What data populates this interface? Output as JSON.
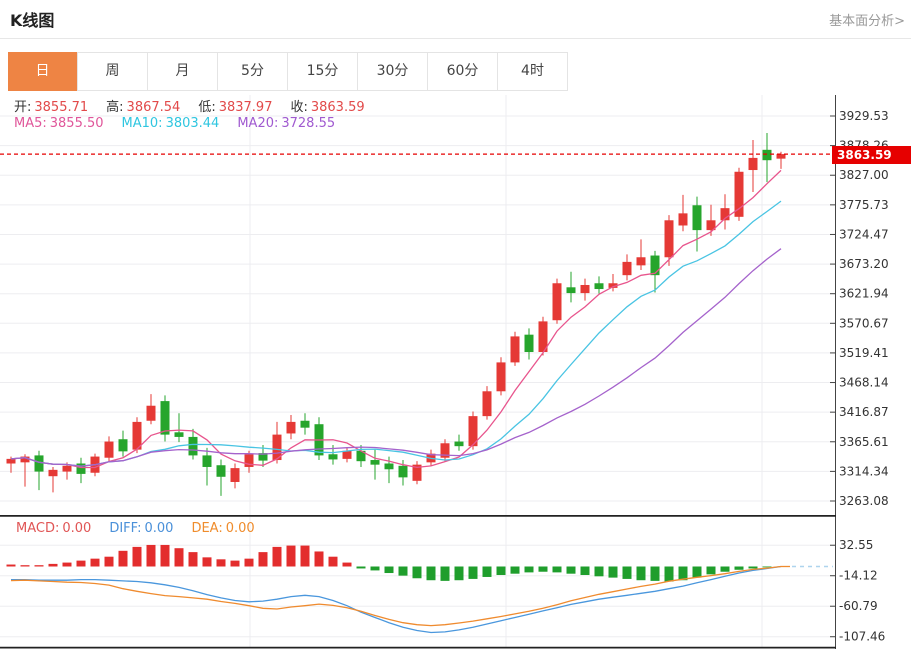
{
  "header": {
    "title": "K线图",
    "link": "基本面分析>"
  },
  "tabs": {
    "items": [
      "日",
      "周",
      "月",
      "5分",
      "15分",
      "30分",
      "60分",
      "4时"
    ],
    "active_index": 0
  },
  "legend": {
    "ohlc": [
      {
        "label": "开:",
        "value": "3855.71"
      },
      {
        "label": "高:",
        "value": "3867.54"
      },
      {
        "label": "低:",
        "value": "3837.97"
      },
      {
        "label": "收:",
        "value": "3863.59"
      }
    ],
    "ma": [
      {
        "label": "MA5:",
        "value": "3855.50",
        "color": "#e0569a"
      },
      {
        "label": "MA10:",
        "value": "3803.44",
        "color": "#2fc6e0"
      },
      {
        "label": "MA20:",
        "value": "3728.55",
        "color": "#a05ad0"
      }
    ],
    "macd": [
      {
        "label": "MACD:",
        "value": "0.00",
        "color": "#e05555"
      },
      {
        "label": "DIFF:",
        "value": "0.00",
        "color": "#4a90d9"
      },
      {
        "label": "DEA:",
        "value": "0.00",
        "color": "#ef8c2c"
      }
    ]
  },
  "price_marker": {
    "value": "3863.59",
    "bg": "#e60000"
  },
  "colors": {
    "up": "#e53935",
    "down": "#26a52c",
    "ma5": "#e8558d",
    "ma10": "#49c4e3",
    "ma20": "#a563cc",
    "diff_line": "#4a97dd",
    "dea_line": "#ef8b2f",
    "label_text": "#333333",
    "value_red": "#e24a4a",
    "grid": "#ededf0",
    "axis": "#444444",
    "border": "#222222",
    "dashed_price": "#e60000",
    "zero_dash": "#aed4ee",
    "macd_up": "#e32d2d",
    "macd_down": "#1f9e2c",
    "tab_active_bg": "#ee8444"
  },
  "chart_data": {
    "type": "candlestick",
    "x_count": 56,
    "price_panel": {
      "title": "K线图",
      "y_ticks": [
        3929.53,
        3878.26,
        3827.0,
        3775.73,
        3724.47,
        3673.2,
        3621.94,
        3570.67,
        3519.41,
        3468.14,
        3416.87,
        3365.61,
        3314.34,
        3263.08
      ],
      "ylim": [
        3263.08,
        3929.53
      ],
      "current_price": 3863.59,
      "last_candle": {
        "open": 3855.71,
        "high": 3867.54,
        "low": 3837.97,
        "close": 3863.59
      },
      "ma_periods": [
        5,
        10,
        20
      ],
      "ma_last_values": {
        "ma5": 3855.5,
        "ma10": 3803.44,
        "ma20": 3728.55
      },
      "candles_ohlc": [
        [
          3328,
          3340,
          3312,
          3336
        ],
        [
          3330,
          3344,
          3288,
          3340
        ],
        [
          3342,
          3350,
          3282,
          3314
        ],
        [
          3306,
          3322,
          3278,
          3317
        ],
        [
          3314,
          3330,
          3300,
          3324
        ],
        [
          3328,
          3338,
          3294,
          3310
        ],
        [
          3312,
          3345,
          3306,
          3340
        ],
        [
          3338,
          3375,
          3330,
          3366
        ],
        [
          3370,
          3385,
          3340,
          3349
        ],
        [
          3352,
          3408,
          3346,
          3400
        ],
        [
          3402,
          3448,
          3396,
          3428
        ],
        [
          3436,
          3446,
          3366,
          3378
        ],
        [
          3382,
          3415,
          3365,
          3374
        ],
        [
          3374,
          3388,
          3335,
          3342
        ],
        [
          3342,
          3355,
          3290,
          3322
        ],
        [
          3325,
          3335,
          3272,
          3305
        ],
        [
          3296,
          3328,
          3285,
          3320
        ],
        [
          3322,
          3350,
          3312,
          3344
        ],
        [
          3346,
          3360,
          3322,
          3333
        ],
        [
          3334,
          3400,
          3328,
          3378
        ],
        [
          3380,
          3412,
          3370,
          3400
        ],
        [
          3402,
          3415,
          3378,
          3390
        ],
        [
          3396,
          3408,
          3334,
          3342
        ],
        [
          3344,
          3360,
          3326,
          3335
        ],
        [
          3336,
          3356,
          3330,
          3350
        ],
        [
          3350,
          3360,
          3322,
          3332
        ],
        [
          3334,
          3352,
          3300,
          3326
        ],
        [
          3328,
          3340,
          3294,
          3318
        ],
        [
          3324,
          3334,
          3290,
          3304
        ],
        [
          3298,
          3332,
          3292,
          3326
        ],
        [
          3330,
          3352,
          3324,
          3345
        ],
        [
          3338,
          3370,
          3332,
          3363
        ],
        [
          3366,
          3378,
          3350,
          3358
        ],
        [
          3358,
          3418,
          3352,
          3410
        ],
        [
          3410,
          3462,
          3404,
          3453
        ],
        [
          3453,
          3512,
          3446,
          3503
        ],
        [
          3503,
          3556,
          3497,
          3548
        ],
        [
          3551,
          3562,
          3508,
          3521
        ],
        [
          3521,
          3582,
          3515,
          3574
        ],
        [
          3576,
          3648,
          3570,
          3640
        ],
        [
          3633,
          3660,
          3607,
          3623
        ],
        [
          3623,
          3648,
          3610,
          3637
        ],
        [
          3640,
          3652,
          3622,
          3630
        ],
        [
          3632,
          3656,
          3626,
          3640
        ],
        [
          3654,
          3690,
          3645,
          3677
        ],
        [
          3671,
          3716,
          3663,
          3685
        ],
        [
          3688,
          3696,
          3624,
          3654
        ],
        [
          3685,
          3758,
          3670,
          3749
        ],
        [
          3740,
          3793,
          3730,
          3761
        ],
        [
          3775,
          3790,
          3695,
          3732
        ],
        [
          3732,
          3776,
          3722,
          3749
        ],
        [
          3749,
          3794,
          3733,
          3770
        ],
        [
          3755,
          3840,
          3748,
          3833
        ],
        [
          3836,
          3888,
          3798,
          3857
        ],
        [
          3871,
          3900,
          3815,
          3853
        ],
        [
          3855.71,
          3867.54,
          3837.97,
          3863.59
        ]
      ]
    },
    "macd_panel": {
      "y_ticks": [
        32.55,
        -14.12,
        -60.79,
        -107.46
      ],
      "last_values": {
        "macd": 0.0,
        "diff": 0.0,
        "dea": 0.0
      },
      "macd": [
        3,
        2,
        2,
        4,
        6,
        9,
        12,
        15,
        24,
        30,
        33,
        33,
        28,
        22,
        14,
        11,
        9,
        12,
        22,
        30,
        32,
        32,
        23,
        15,
        6,
        -3,
        -6,
        -10,
        -14,
        -18,
        -21,
        -22,
        -21,
        -19,
        -16,
        -13,
        -11,
        -9,
        -8,
        -9,
        -11,
        -13,
        -15,
        -17,
        -19,
        -21,
        -22,
        -23,
        -21,
        -17,
        -12,
        -8,
        -5,
        -3,
        -1,
        0
      ],
      "diff": [
        -20,
        -20,
        -21,
        -21,
        -21,
        -20,
        -20,
        -21,
        -22,
        -23,
        -25,
        -28,
        -32,
        -37,
        -43,
        -48,
        -52,
        -54,
        -53,
        -50,
        -46,
        -44,
        -46,
        -52,
        -60,
        -70,
        -78,
        -86,
        -93,
        -98,
        -101,
        -100,
        -97,
        -93,
        -88,
        -83,
        -78,
        -73,
        -68,
        -63,
        -58,
        -54,
        -50,
        -47,
        -44,
        -41,
        -38,
        -34,
        -30,
        -25,
        -20,
        -15,
        -10,
        -6,
        -3,
        0
      ],
      "dea": [
        -21.5,
        -21,
        -22,
        -23,
        -24,
        -24.5,
        -26,
        -28.5,
        -34,
        -38,
        -41.5,
        -44.5,
        -46,
        -48,
        -50,
        -53.5,
        -56.5,
        -60,
        -64,
        -65,
        -62,
        -60,
        -57.5,
        -59.5,
        -63,
        -68.5,
        -75,
        -81,
        -86,
        -89,
        -90.5,
        -89,
        -86.5,
        -83.5,
        -80,
        -76.5,
        -72.5,
        -68.5,
        -64,
        -58.5,
        -52.5,
        -47.5,
        -42.5,
        -38.5,
        -34.5,
        -30.5,
        -27,
        -22.5,
        -19.5,
        -16.5,
        -14,
        -11,
        -7.5,
        -4.5,
        -2.5,
        0
      ]
    }
  }
}
